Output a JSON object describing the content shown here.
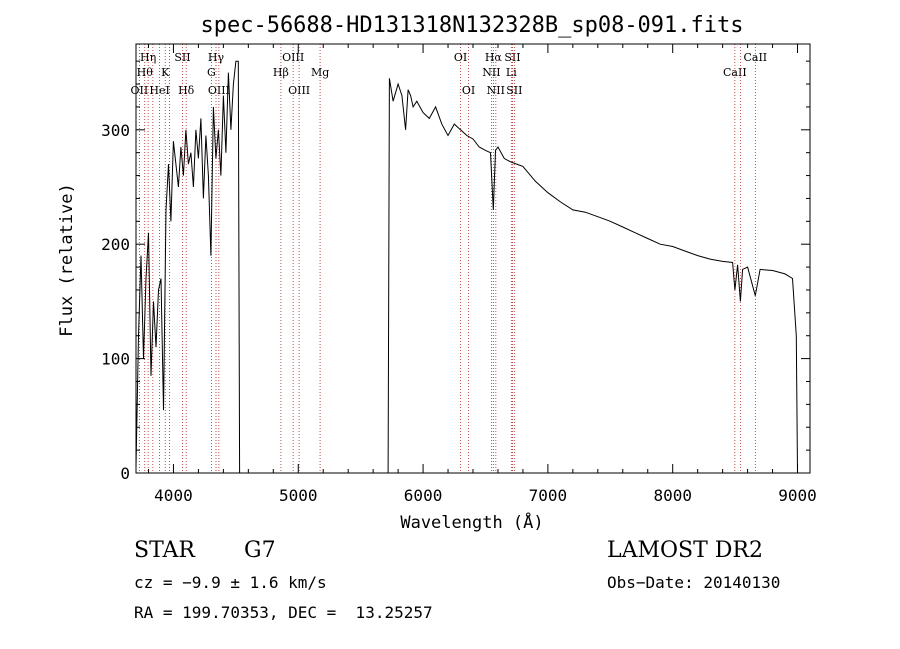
{
  "chart_data": {
    "type": "line",
    "title": "spec-56688-HD131318N132328B_sp08-091.fits",
    "xlabel": "Wavelength (Å)",
    "ylabel": "Flux (relative)",
    "xlim": [
      3700,
      9100
    ],
    "ylim": [
      0,
      375
    ],
    "xticks": [
      4000,
      5000,
      6000,
      7000,
      8000,
      9000
    ],
    "yticks": [
      0,
      100,
      200,
      300
    ],
    "grid": false,
    "line_color": "#000000",
    "marker_color": "#b22222",
    "gap_range": [
      4530,
      5720
    ],
    "series": [
      {
        "x": [
          3700,
          3720,
          3740,
          3760,
          3780,
          3800,
          3820,
          3840,
          3860,
          3880,
          3900,
          3920,
          3940,
          3960,
          3980,
          4000,
          4020,
          4040,
          4060,
          4080,
          4100,
          4120,
          4140,
          4160,
          4180,
          4200,
          4220,
          4240,
          4260,
          4280,
          4300,
          4320,
          4340,
          4360,
          4380,
          4400,
          4420,
          4440,
          4460,
          4480,
          4500,
          4520,
          4530,
          5720,
          5730,
          5760,
          5800,
          5830,
          5860,
          5880,
          5900,
          5920,
          5950,
          6000,
          6050,
          6100,
          6150,
          6200,
          6250,
          6300,
          6350,
          6400,
          6450,
          6500,
          6540,
          6563,
          6580,
          6600,
          6650,
          6700,
          6750,
          6800,
          6900,
          7000,
          7100,
          7200,
          7300,
          7400,
          7500,
          7600,
          7700,
          7800,
          7900,
          8000,
          8100,
          8200,
          8300,
          8400,
          8480,
          8498,
          8520,
          8542,
          8560,
          8600,
          8662,
          8700,
          8800,
          8900,
          8960,
          8990,
          9000
        ],
        "y": [
          5,
          120,
          190,
          100,
          170,
          210,
          85,
          150,
          110,
          160,
          170,
          55,
          230,
          270,
          220,
          290,
          270,
          250,
          285,
          260,
          300,
          270,
          280,
          250,
          300,
          275,
          310,
          240,
          295,
          260,
          190,
          320,
          275,
          300,
          260,
          330,
          280,
          350,
          300,
          340,
          360,
          360,
          0,
          0,
          345,
          325,
          340,
          330,
          300,
          335,
          330,
          320,
          325,
          315,
          310,
          320,
          305,
          295,
          305,
          300,
          295,
          292,
          285,
          282,
          280,
          230,
          282,
          285,
          275,
          272,
          270,
          268,
          255,
          245,
          237,
          230,
          228,
          224,
          220,
          215,
          210,
          205,
          200,
          198,
          194,
          190,
          187,
          185,
          184,
          160,
          182,
          150,
          178,
          180,
          155,
          178,
          177,
          174,
          170,
          120,
          0
        ]
      }
    ],
    "lines": [
      {
        "x": 3727,
        "labels": [
          {
            "text": "OII",
            "row": 3
          }
        ]
      },
      {
        "x": 3770,
        "labels": [
          {
            "text": "Hθ",
            "row": 2
          }
        ]
      },
      {
        "x": 3797,
        "labels": [
          {
            "text": "Hη",
            "row": 1
          }
        ]
      },
      {
        "x": 3835,
        "labels": []
      },
      {
        "x": 3889,
        "labels": [
          {
            "text": "HeI",
            "row": 3
          }
        ]
      },
      {
        "x": 3934,
        "labels": [
          {
            "text": "K",
            "row": 2
          }
        ]
      },
      {
        "x": 3969,
        "labels": []
      },
      {
        "x": 4072,
        "labels": [
          {
            "text": "SII",
            "row": 1
          }
        ]
      },
      {
        "x": 4102,
        "labels": [
          {
            "text": "Hδ",
            "row": 3
          }
        ]
      },
      {
        "x": 4304,
        "labels": [
          {
            "text": "G",
            "row": 2
          }
        ]
      },
      {
        "x": 4341,
        "labels": [
          {
            "text": "Hγ",
            "row": 1
          }
        ]
      },
      {
        "x": 4364,
        "labels": [
          {
            "text": "OIII",
            "row": 3
          }
        ]
      },
      {
        "x": 4861,
        "labels": [
          {
            "text": "Hβ",
            "row": 2
          }
        ]
      },
      {
        "x": 4959,
        "labels": [
          {
            "text": "OIII",
            "row": 1
          }
        ]
      },
      {
        "x": 5007,
        "labels": [
          {
            "text": "OIII",
            "row": 3
          }
        ]
      },
      {
        "x": 5175,
        "labels": [
          {
            "text": "Mg",
            "row": 2
          }
        ]
      },
      {
        "x": 6300,
        "labels": [
          {
            "text": "OI",
            "row": 1
          }
        ]
      },
      {
        "x": 6364,
        "labels": [
          {
            "text": "OI",
            "row": 3
          }
        ]
      },
      {
        "x": 6548,
        "labels": [
          {
            "text": "NII",
            "row": 2
          }
        ]
      },
      {
        "x": 6563,
        "labels": [
          {
            "text": "Hα",
            "row": 1
          }
        ]
      },
      {
        "x": 6583,
        "labels": [
          {
            "text": "NII",
            "row": 3
          }
        ]
      },
      {
        "x": 6707,
        "labels": [
          {
            "text": "Li",
            "row": 2
          }
        ]
      },
      {
        "x": 6716,
        "labels": [
          {
            "text": "SII",
            "row": 1
          }
        ]
      },
      {
        "x": 6731,
        "labels": [
          {
            "text": "SII",
            "row": 3
          }
        ]
      },
      {
        "x": 8498,
        "labels": [
          {
            "text": "CaII",
            "row": 2
          }
        ]
      },
      {
        "x": 8542,
        "labels": []
      },
      {
        "x": 8662,
        "labels": [
          {
            "text": "CaII",
            "row": 1
          }
        ]
      }
    ]
  },
  "footer": {
    "object_class": "STAR",
    "subclass": "G7",
    "survey": "LAMOST DR2",
    "cz": "cz = −9.9 ± 1.6 km/s",
    "obs_date": "Obs−Date: 20140130",
    "coords": "RA = 199.70353, DEC =  13.25257"
  }
}
